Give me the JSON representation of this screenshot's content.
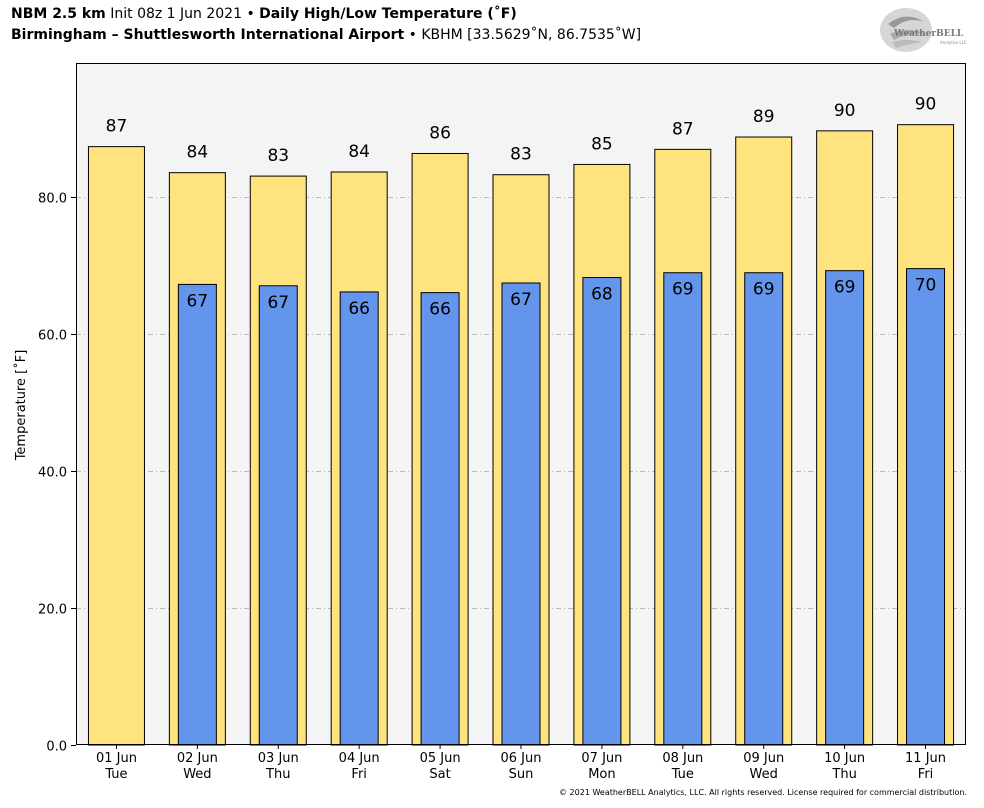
{
  "header": {
    "model": "NBM 2.5 km",
    "init": "Init 08z 1 Jun 2021",
    "bullet": "•",
    "product": "Daily High/Low Temperature (˚F)",
    "location": "Birmingham – Shuttlesworth International Airport",
    "station": "KBHM [33.5629˚N, 86.7535˚W]"
  },
  "logo": {
    "text": "WeatherBELL",
    "subtext": "Analytics LLC"
  },
  "copyright": "© 2021 WeatherBELL Analytics, LLC. All rights reserved. License required for commercial distribution.",
  "colors": {
    "high": "#FFE37E",
    "low": "#6495ED",
    "plot_bg": "#F4F4F4",
    "grid": "#BBBBBB"
  },
  "chart_data": {
    "type": "bar",
    "title": "Daily High/Low Temperature (˚F)",
    "ylabel": "Temperature [˚F]",
    "ylim": [
      0,
      99.5
    ],
    "yticks": [
      0,
      20,
      40,
      60,
      80
    ],
    "ytick_labels": [
      "0.0",
      "20.0",
      "40.0",
      "60.0",
      "80.0"
    ],
    "grid": "horizontal dashed",
    "categories": [
      "01 Jun",
      "02 Jun",
      "03 Jun",
      "04 Jun",
      "05 Jun",
      "06 Jun",
      "07 Jun",
      "08 Jun",
      "09 Jun",
      "10 Jun",
      "11 Jun"
    ],
    "weekdays": [
      "Tue",
      "Wed",
      "Thu",
      "Fri",
      "Sat",
      "Sun",
      "Mon",
      "Tue",
      "Wed",
      "Thu",
      "Fri"
    ],
    "series": [
      {
        "name": "High",
        "values": [
          87.3,
          83.5,
          83.0,
          83.6,
          86.3,
          83.2,
          84.7,
          86.9,
          88.7,
          89.6,
          90.5
        ],
        "labels": [
          "87",
          "84",
          "83",
          "84",
          "86",
          "83",
          "85",
          "87",
          "89",
          "90",
          "90"
        ]
      },
      {
        "name": "Low",
        "values": [
          null,
          67.2,
          67.0,
          66.1,
          66.0,
          67.4,
          68.2,
          68.9,
          68.9,
          69.2,
          69.5
        ],
        "labels": [
          "",
          "67",
          "67",
          "66",
          "66",
          "67",
          "68",
          "69",
          "69",
          "69",
          "70"
        ]
      }
    ]
  }
}
